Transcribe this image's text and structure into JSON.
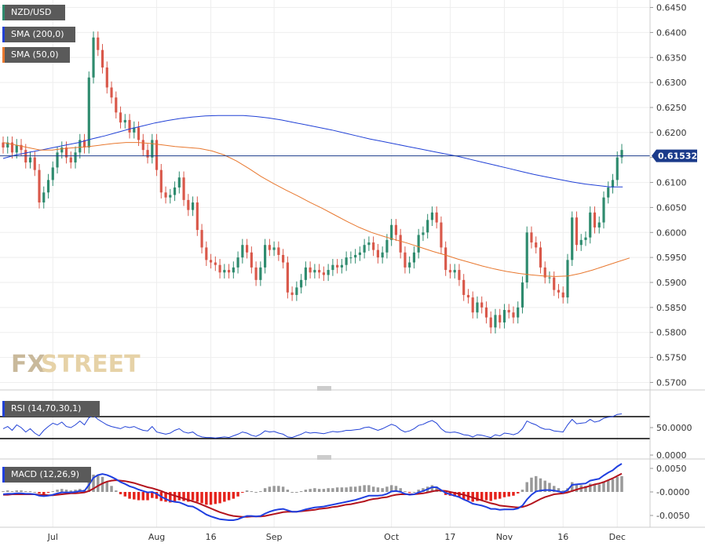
{
  "badges": {
    "pair": "NZD/USD",
    "sma200": "SMA (200,0)",
    "sma50": "SMA (50,0)",
    "rsi": "RSI (14,70,30,1)",
    "macd": "MACD (12,26,9)"
  },
  "watermark": {
    "fx": "FX",
    "street": "STREET"
  },
  "current_price_label": "0.615320",
  "colors": {
    "bull": "#2e8b6e",
    "bear": "#d9584a",
    "sma200": "#2141d6",
    "sma50": "#e8782f",
    "rsi": "#2141d6",
    "macd_line": "#1f3fe0",
    "signal_line": "#b3121c",
    "hist_pos": "#999999",
    "hist_neg": "#e5231c",
    "grid": "#eeeeee",
    "badge_bg": "#5a5a5a",
    "current_price_bg": "#1a3a8a",
    "watermark_fx": "#c9b99b",
    "watermark_street": "#e6d2a7"
  },
  "chart_data": [
    {
      "type": "candlestick",
      "name": "NZD/USD daily",
      "yticks": [
        "0.6450",
        "0.6400",
        "0.6350",
        "0.6300",
        "0.6250",
        "0.6200",
        "0.6150",
        "0.6100",
        "0.6050",
        "0.6000",
        "0.5950",
        "0.5900",
        "0.5850",
        "0.5800",
        "0.5750",
        "0.5700"
      ],
      "ylim": [
        0.5685,
        0.6465
      ],
      "xticks": [
        {
          "label": "Jul",
          "index": 11
        },
        {
          "label": "Aug",
          "index": 34
        },
        {
          "label": "16",
          "index": 46
        },
        {
          "label": "Sep",
          "index": 60
        },
        {
          "label": "Oct",
          "index": 86
        },
        {
          "label": "17",
          "index": 99
        },
        {
          "label": "Nov",
          "index": 111
        },
        {
          "label": "16",
          "index": 124
        },
        {
          "label": "Dec",
          "index": 136
        }
      ],
      "current_price": 0.61532,
      "close": [
        0.617,
        0.618,
        0.616,
        0.6175,
        0.6165,
        0.614,
        0.615,
        0.6125,
        0.606,
        0.608,
        0.6105,
        0.613,
        0.616,
        0.617,
        0.615,
        0.614,
        0.616,
        0.6185,
        0.617,
        0.631,
        0.639,
        0.6365,
        0.633,
        0.629,
        0.627,
        0.624,
        0.622,
        0.6225,
        0.62,
        0.621,
        0.6185,
        0.6165,
        0.615,
        0.6185,
        0.6125,
        0.608,
        0.607,
        0.6075,
        0.609,
        0.611,
        0.6065,
        0.6045,
        0.606,
        0.6005,
        0.597,
        0.5945,
        0.594,
        0.5935,
        0.592,
        0.5925,
        0.592,
        0.593,
        0.595,
        0.5975,
        0.596,
        0.593,
        0.5905,
        0.593,
        0.5975,
        0.5965,
        0.597,
        0.5955,
        0.594,
        0.588,
        0.5875,
        0.589,
        0.5905,
        0.593,
        0.592,
        0.5925,
        0.592,
        0.5915,
        0.5925,
        0.5935,
        0.593,
        0.5935,
        0.595,
        0.595,
        0.5955,
        0.596,
        0.5975,
        0.598,
        0.5965,
        0.595,
        0.596,
        0.5985,
        0.6015,
        0.5995,
        0.596,
        0.593,
        0.594,
        0.596,
        0.5995,
        0.6,
        0.6025,
        0.604,
        0.602,
        0.597,
        0.5925,
        0.592,
        0.5925,
        0.5905,
        0.5875,
        0.587,
        0.584,
        0.586,
        0.585,
        0.583,
        0.581,
        0.5835,
        0.582,
        0.5845,
        0.584,
        0.583,
        0.585,
        0.59,
        0.6,
        0.598,
        0.597,
        0.593,
        0.591,
        0.591,
        0.5885,
        0.588,
        0.587,
        0.5945,
        0.603,
        0.5975,
        0.5985,
        0.599,
        0.604,
        0.601,
        0.602,
        0.607,
        0.609,
        0.6105,
        0.615,
        0.6165
      ]
    },
    {
      "type": "line",
      "name": "SMA (200,0)",
      "values": [
        0.6148,
        0.6155,
        0.616,
        0.6165,
        0.617,
        0.6175,
        0.618,
        0.6187,
        0.6193,
        0.62,
        0.6207,
        0.6213,
        0.6219,
        0.6224,
        0.6228,
        0.6231,
        0.6233,
        0.6234,
        0.6234,
        0.6234,
        0.6232,
        0.6229,
        0.6225,
        0.622,
        0.6215,
        0.621,
        0.6205,
        0.6199,
        0.6193,
        0.6187,
        0.6182,
        0.6177,
        0.6172,
        0.6167,
        0.6162,
        0.6157,
        0.6152,
        0.6146,
        0.614,
        0.6134,
        0.6128,
        0.6122,
        0.6116,
        0.6111,
        0.6106,
        0.6101,
        0.6097,
        0.6094,
        0.6091,
        0.6091
      ],
      "x_start_index": 0,
      "x_step": 2.8
    },
    {
      "type": "line",
      "name": "SMA (50,0)",
      "values": [
        0.618,
        0.6175,
        0.617,
        0.6165,
        0.6165,
        0.6168,
        0.617,
        0.6172,
        0.6175,
        0.6178,
        0.618,
        0.618,
        0.6178,
        0.6175,
        0.6172,
        0.617,
        0.6168,
        0.6163,
        0.6155,
        0.6143,
        0.6128,
        0.6112,
        0.6098,
        0.6085,
        0.6073,
        0.606,
        0.6048,
        0.6035,
        0.6022,
        0.601,
        0.6,
        0.5992,
        0.5985,
        0.5978,
        0.597,
        0.5962,
        0.5955,
        0.5947,
        0.594,
        0.5933,
        0.5927,
        0.5922,
        0.5918,
        0.5915,
        0.5913,
        0.5912,
        0.5913,
        0.5918,
        0.5925,
        0.5933,
        0.5941,
        0.5949
      ],
      "x_start_index": 0,
      "x_step": 2.72
    },
    {
      "type": "line",
      "name": "RSI (14,70,30,1)",
      "yticks": [
        "50.0000",
        "0.0000"
      ],
      "ylim": [
        0,
        100
      ],
      "levels": [
        70,
        30
      ],
      "values": [
        48,
        52,
        45,
        55,
        50,
        42,
        48,
        40,
        35,
        45,
        52,
        58,
        55,
        60,
        52,
        50,
        55,
        62,
        55,
        68,
        72,
        65,
        60,
        55,
        52,
        50,
        48,
        52,
        50,
        52,
        48,
        45,
        44,
        52,
        42,
        40,
        38,
        40,
        45,
        48,
        42,
        40,
        42,
        36,
        33,
        32,
        32,
        31,
        32,
        33,
        32,
        35,
        38,
        42,
        40,
        36,
        34,
        38,
        44,
        42,
        43,
        40,
        38,
        33,
        32,
        35,
        38,
        42,
        40,
        41,
        40,
        39,
        41,
        43,
        42,
        43,
        45,
        45,
        46,
        47,
        50,
        51,
        48,
        45,
        48,
        52,
        56,
        53,
        46,
        42,
        44,
        48,
        54,
        56,
        60,
        63,
        58,
        48,
        42,
        41,
        42,
        40,
        37,
        36,
        33,
        37,
        36,
        34,
        32,
        37,
        35,
        40,
        39,
        37,
        40,
        48,
        62,
        58,
        55,
        50,
        47,
        47,
        44,
        43,
        42,
        55,
        65,
        57,
        58,
        59,
        65,
        60,
        62,
        67,
        69,
        70,
        74,
        75
      ]
    },
    {
      "type": "line",
      "name": "MACD (12,26,9)",
      "yticks": [
        "0.0050",
        "-0.0000",
        "-0.0050"
      ],
      "ylim": [
        -0.0075,
        0.0065
      ],
      "macd": [
        -0.0005,
        -0.0004,
        -0.0004,
        -0.0003,
        -0.0003,
        -0.0004,
        -0.0004,
        -0.0005,
        -0.0008,
        -0.0009,
        -0.0008,
        -0.0006,
        -0.0003,
        -0.0001,
        -0.0001,
        -0.0001,
        0.0,
        0.0002,
        0.0002,
        0.0015,
        0.003,
        0.0036,
        0.0038,
        0.0036,
        0.0032,
        0.0027,
        0.0021,
        0.0017,
        0.0012,
        0.0009,
        0.0005,
        0.0002,
        -0.0001,
        0.0,
        -0.0004,
        -0.001,
        -0.0015,
        -0.0019,
        -0.0021,
        -0.0022,
        -0.0026,
        -0.003,
        -0.0031,
        -0.0036,
        -0.0042,
        -0.0048,
        -0.0052,
        -0.0055,
        -0.0058,
        -0.0059,
        -0.006,
        -0.006,
        -0.0058,
        -0.0054,
        -0.0051,
        -0.0051,
        -0.0052,
        -0.0051,
        -0.0046,
        -0.0042,
        -0.0039,
        -0.0037,
        -0.0036,
        -0.0039,
        -0.0042,
        -0.0042,
        -0.004,
        -0.0037,
        -0.0035,
        -0.0033,
        -0.0032,
        -0.0031,
        -0.0029,
        -0.0027,
        -0.0025,
        -0.0023,
        -0.0021,
        -0.0019,
        -0.0017,
        -0.0014,
        -0.0011,
        -0.0008,
        -0.0008,
        -0.0008,
        -0.0007,
        -0.0004,
        0.0001,
        0.0002,
        0.0,
        -0.0004,
        -0.0006,
        -0.0005,
        -0.0001,
        0.0002,
        0.0006,
        0.001,
        0.001,
        0.0004,
        -0.0002,
        -0.0005,
        -0.0008,
        -0.0011,
        -0.0016,
        -0.002,
        -0.0025,
        -0.0027,
        -0.0029,
        -0.0032,
        -0.0036,
        -0.0036,
        -0.0038,
        -0.0037,
        -0.0037,
        -0.0037,
        -0.0035,
        -0.0029,
        -0.0016,
        -0.0006,
        0.0001,
        0.0003,
        0.0004,
        0.0004,
        0.0003,
        0.0001,
        -0.0001,
        0.0004,
        0.0015,
        0.0016,
        0.0017,
        0.0018,
        0.0024,
        0.0026,
        0.0028,
        0.0035,
        0.0041,
        0.0046,
        0.0054,
        0.006
      ],
      "signal": [
        -0.0006,
        -0.0006,
        -0.0005,
        -0.0005,
        -0.0005,
        -0.0005,
        -0.0005,
        -0.0005,
        -0.0006,
        -0.0006,
        -0.0007,
        -0.0007,
        -0.0006,
        -0.0005,
        -0.0004,
        -0.0003,
        -0.0003,
        -0.0002,
        -0.0001,
        0.0002,
        0.0007,
        0.0013,
        0.0018,
        0.0022,
        0.0024,
        0.0025,
        0.0024,
        0.0023,
        0.0021,
        0.0019,
        0.0016,
        0.0013,
        0.001,
        0.0008,
        0.0005,
        0.0002,
        -0.0002,
        -0.0005,
        -0.0008,
        -0.0011,
        -0.0014,
        -0.0017,
        -0.002,
        -0.0023,
        -0.0027,
        -0.0031,
        -0.0035,
        -0.0039,
        -0.0043,
        -0.0046,
        -0.0049,
        -0.0051,
        -0.0052,
        -0.0053,
        -0.0053,
        -0.0052,
        -0.0052,
        -0.0052,
        -0.0051,
        -0.0049,
        -0.0047,
        -0.0045,
        -0.0043,
        -0.0042,
        -0.0042,
        -0.0042,
        -0.0041,
        -0.004,
        -0.0039,
        -0.0038,
        -0.0036,
        -0.0035,
        -0.0034,
        -0.0032,
        -0.0031,
        -0.0029,
        -0.0027,
        -0.0026,
        -0.0024,
        -0.0022,
        -0.002,
        -0.0017,
        -0.0015,
        -0.0014,
        -0.0012,
        -0.0011,
        -0.0008,
        -0.0006,
        -0.0005,
        -0.0005,
        -0.0005,
        -0.0005,
        -0.0004,
        -0.0003,
        -0.0001,
        0.0001,
        0.0003,
        0.0003,
        0.0002,
        0.0,
        -0.0002,
        -0.0004,
        -0.0006,
        -0.0009,
        -0.0012,
        -0.0015,
        -0.0018,
        -0.0021,
        -0.0024,
        -0.0026,
        -0.0029,
        -0.003,
        -0.0031,
        -0.0032,
        -0.0033,
        -0.0032,
        -0.0029,
        -0.0025,
        -0.002,
        -0.0015,
        -0.0011,
        -0.0008,
        -0.0005,
        -0.0004,
        -0.0003,
        -0.0001,
        0.0002,
        0.0005,
        0.0008,
        0.001,
        0.0013,
        0.0016,
        0.0018,
        0.0021,
        0.0025,
        0.0029,
        0.0034,
        0.0039
      ]
    }
  ]
}
